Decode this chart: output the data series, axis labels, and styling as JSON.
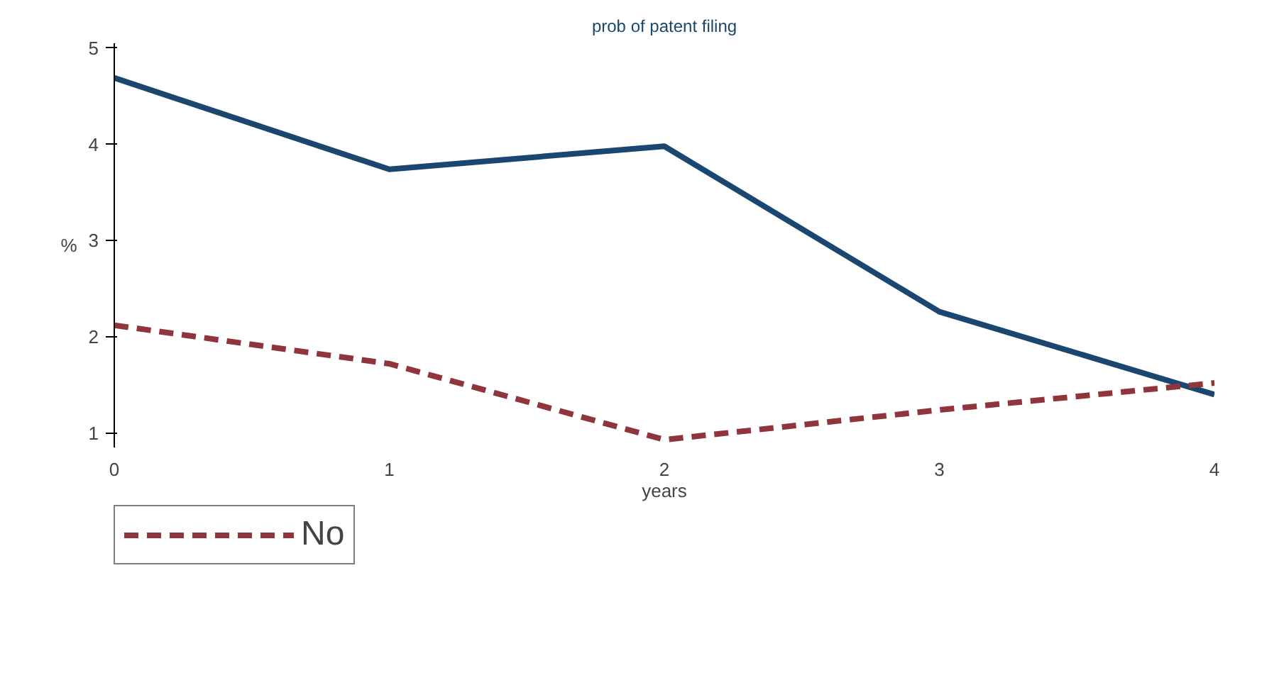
{
  "chart_data": {
    "type": "line",
    "title": "prob of patent filing",
    "xlabel": "years",
    "ylabel": "%",
    "x": [
      0,
      1,
      2,
      3,
      4
    ],
    "xlim": [
      0,
      4
    ],
    "xticks": [
      0,
      1,
      2,
      3,
      4
    ],
    "ylim": [
      0.85,
      5.05
    ],
    "yticks": [
      1,
      2,
      3,
      4,
      5
    ],
    "series": [
      {
        "color": "#1a476f",
        "values": [
          4.69,
          3.74,
          3.98,
          2.26,
          1.4
        ],
        "line_style": "solid"
      },
      {
        "name": "No",
        "color": "#90353b",
        "values": [
          2.12,
          1.72,
          0.93,
          1.24,
          1.52
        ],
        "line_style": "dashed"
      }
    ],
    "grid": false,
    "legend": "bottom left"
  }
}
